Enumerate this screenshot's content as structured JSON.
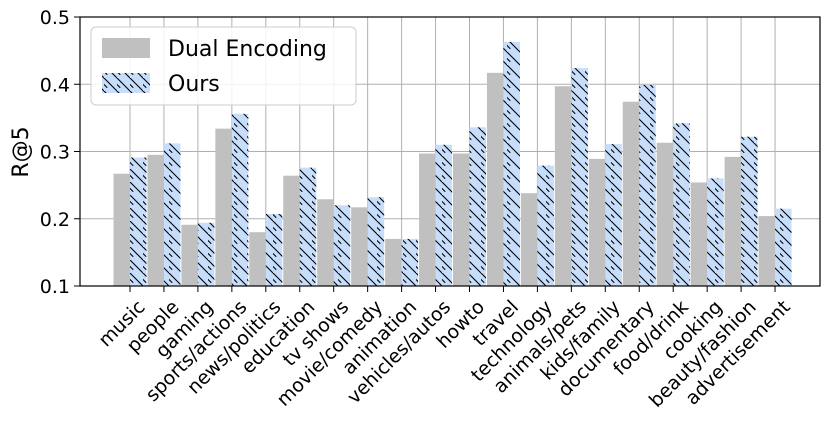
{
  "chart_data": {
    "type": "bar",
    "ylabel": "R@5",
    "xlabel": "",
    "ylim": [
      0.1,
      0.5
    ],
    "yticks": [
      "0.1",
      "0.2",
      "0.3",
      "0.4",
      "0.5"
    ],
    "grid": true,
    "legend_position": "top-left",
    "categories": [
      "music",
      "people",
      "gaming",
      "sports/actions",
      "news/politics",
      "education",
      "tv shows",
      "movie/comedy",
      "animation",
      "vehicles/autos",
      "howto",
      "travel",
      "technology",
      "animals/pets",
      "kids/family",
      "documentary",
      "food/drink",
      "cooking",
      "beauty/fashion",
      "advertisement"
    ],
    "series": [
      {
        "name": "Dual Encoding",
        "color": "#c0c0c0",
        "hatch": false,
        "values": [
          0.267,
          0.295,
          0.191,
          0.334,
          0.18,
          0.264,
          0.229,
          0.217,
          0.17,
          0.297,
          0.297,
          0.417,
          0.238,
          0.397,
          0.289,
          0.374,
          0.313,
          0.254,
          0.292,
          0.204
        ]
      },
      {
        "name": "Ours",
        "color": "#c6defc",
        "hatch": true,
        "values": [
          0.291,
          0.312,
          0.194,
          0.356,
          0.207,
          0.276,
          0.22,
          0.232,
          0.17,
          0.31,
          0.336,
          0.463,
          0.279,
          0.424,
          0.311,
          0.399,
          0.342,
          0.26,
          0.322,
          0.215
        ]
      }
    ]
  }
}
